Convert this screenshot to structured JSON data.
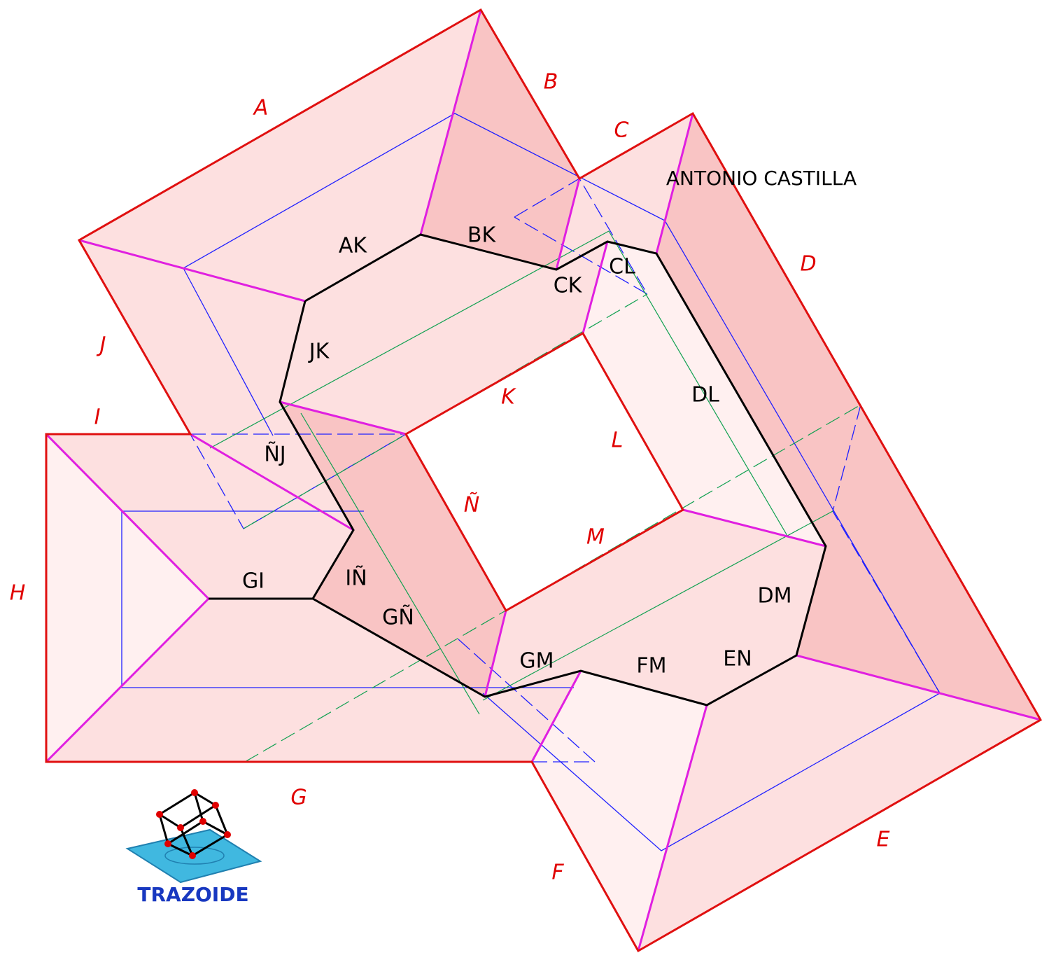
{
  "author": "ANTONIO CASTILLA",
  "logo": "TRAZOIDE",
  "edge_labels": [
    "A",
    "B",
    "C",
    "D",
    "E",
    "F",
    "G",
    "H",
    "I",
    "J",
    "K",
    "L",
    "M",
    "Ñ"
  ],
  "ridge_labels": [
    "AK",
    "BK",
    "CK",
    "CL",
    "DL",
    "DM",
    "EN",
    "FM",
    "GM",
    "GÑ",
    "IÑ",
    "GI",
    "ÑJ",
    "JK"
  ]
}
